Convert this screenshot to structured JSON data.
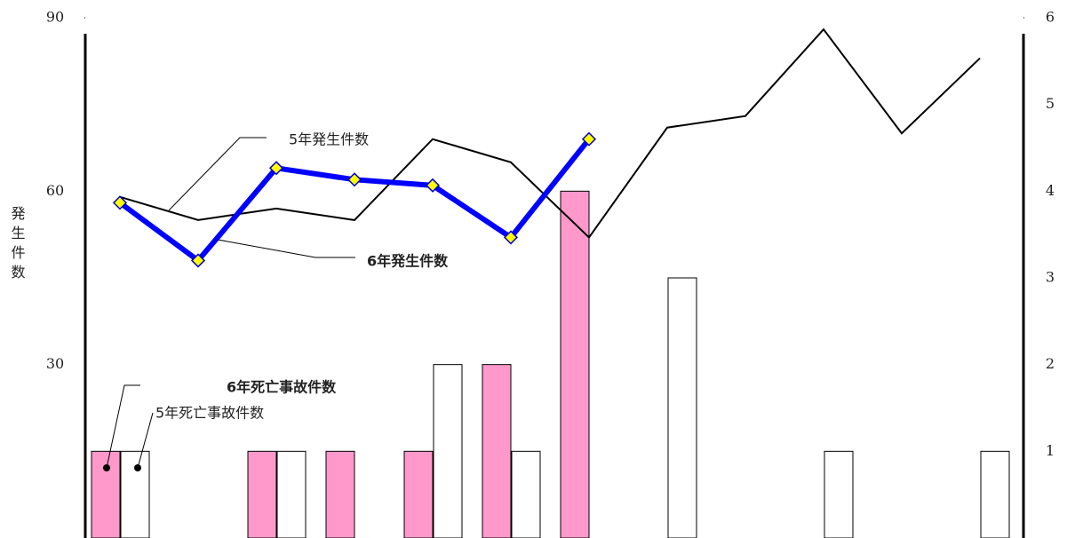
{
  "chart_data": {
    "type": "combo",
    "y_label": "発生件数",
    "categories": [
      null,
      null,
      null,
      null,
      null,
      null,
      null,
      null,
      null,
      null,
      null,
      null
    ],
    "ylim": [
      0,
      90
    ],
    "yticks": [
      30,
      60,
      90
    ],
    "y2lim": [
      0,
      6
    ],
    "y2ticks": [
      1,
      2,
      3,
      4,
      5,
      6
    ],
    "series": [
      {
        "name": "6年死亡事故件数",
        "type": "bar",
        "axis": "y2",
        "color": "#ff99cc",
        "values": [
          1,
          0,
          1,
          1,
          1,
          2,
          4,
          null,
          null,
          null,
          null,
          null
        ]
      },
      {
        "name": "5年死亡事故件数",
        "type": "bar",
        "axis": "y2",
        "color": "#ffffff",
        "values": [
          1,
          0,
          1,
          0,
          2,
          1,
          0,
          3,
          0,
          1,
          0,
          1
        ]
      },
      {
        "name": "5年発生件数",
        "type": "line",
        "color": "#000000",
        "values": [
          59,
          55,
          57,
          55,
          69,
          65,
          52,
          71,
          73,
          88,
          70,
          83
        ]
      },
      {
        "name": "6年発生件数",
        "type": "line",
        "color": "#0000ff",
        "values": [
          58,
          48,
          64,
          62,
          61,
          52,
          69,
          null,
          null,
          null,
          null,
          null
        ]
      }
    ]
  }
}
